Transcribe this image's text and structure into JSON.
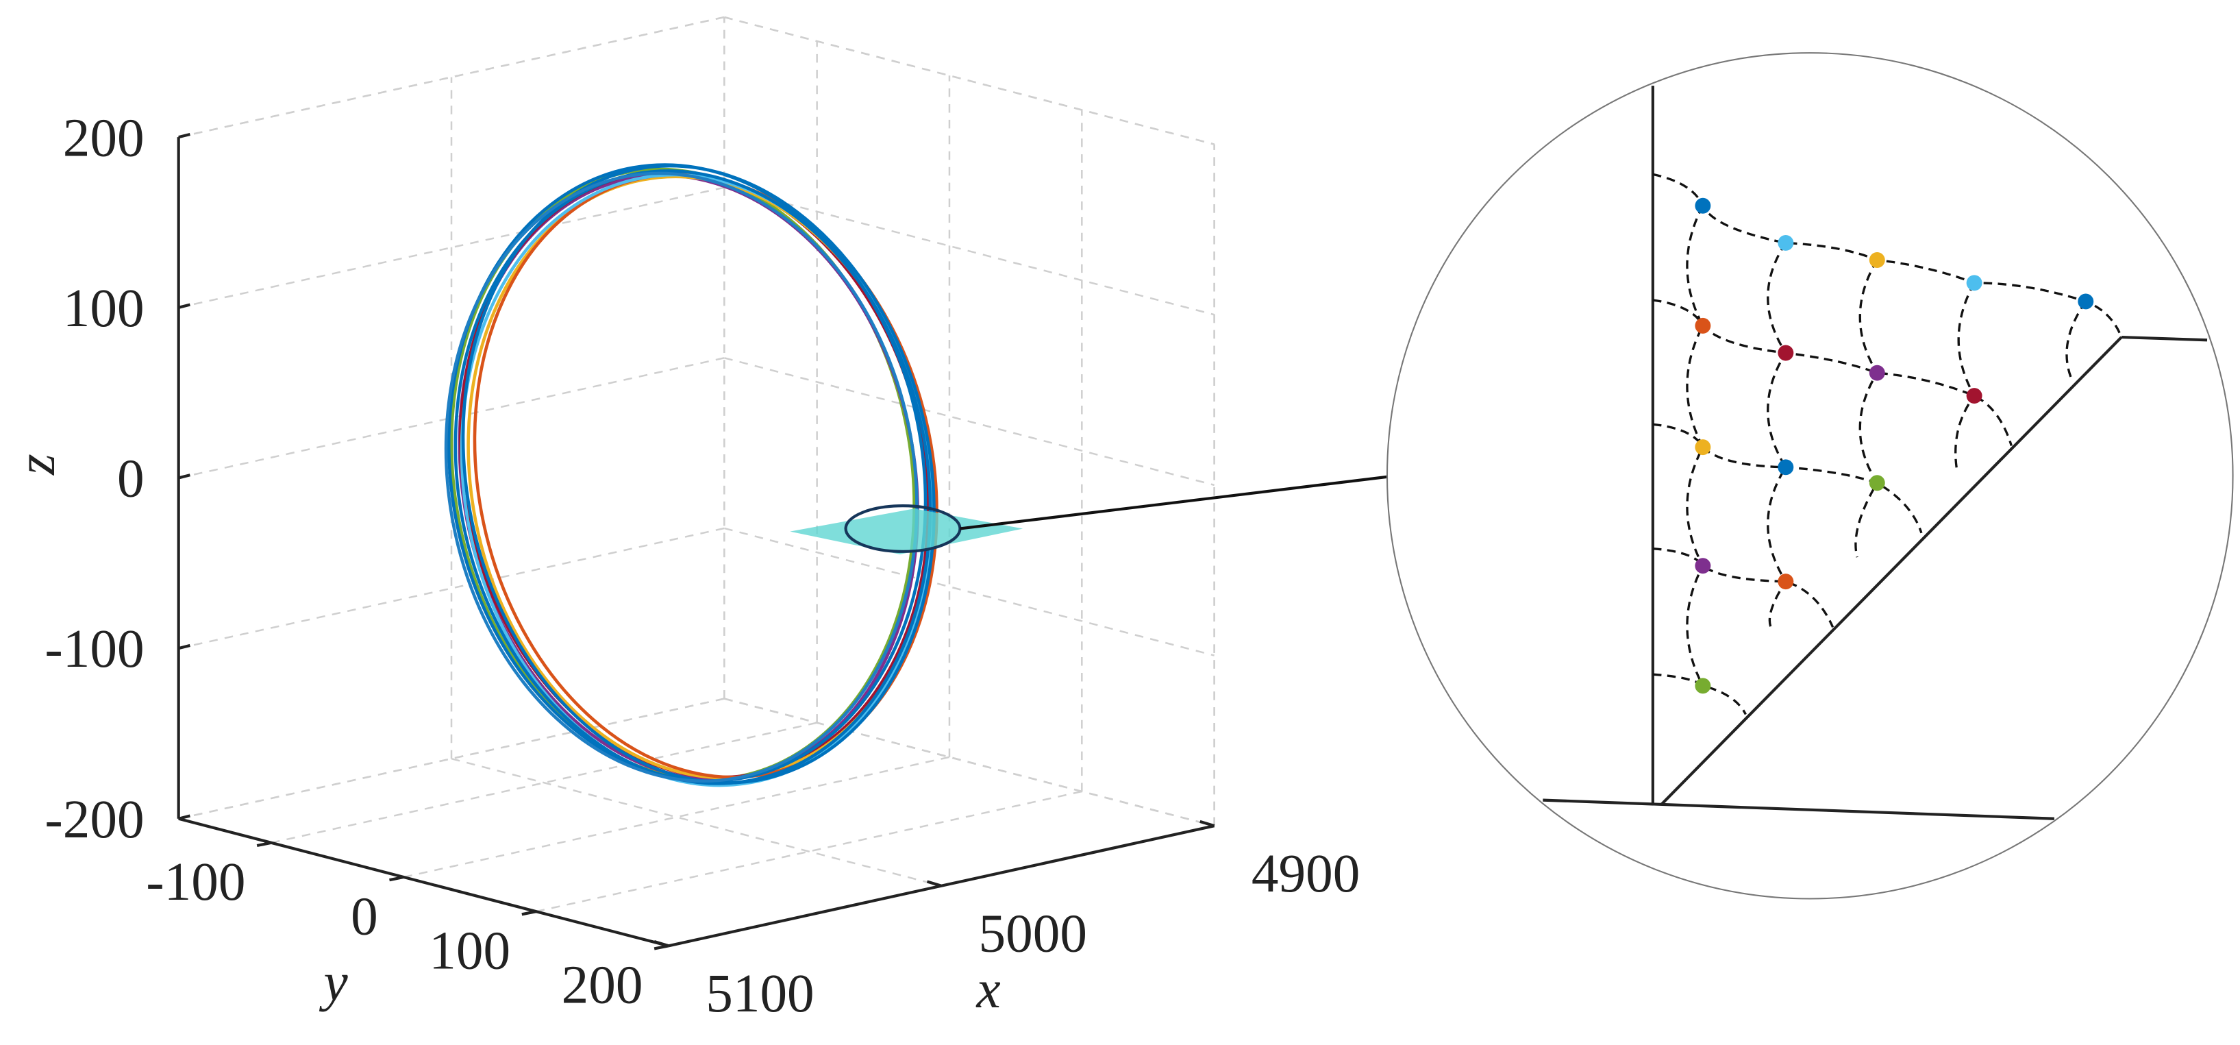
{
  "chart_data": {
    "type": "line3d",
    "xlabel": "x",
    "ylabel": "y",
    "zlabel": "z",
    "xlim": [
      5100,
      4900
    ],
    "ylim": [
      -170,
      200
    ],
    "zlim": [
      -200,
      200
    ],
    "xticks": [
      4900,
      5000,
      5100
    ],
    "yticks": [
      -100,
      0,
      100,
      200
    ],
    "zticks": [
      -200,
      -100,
      0,
      100,
      200
    ],
    "grid": true
  }
}
